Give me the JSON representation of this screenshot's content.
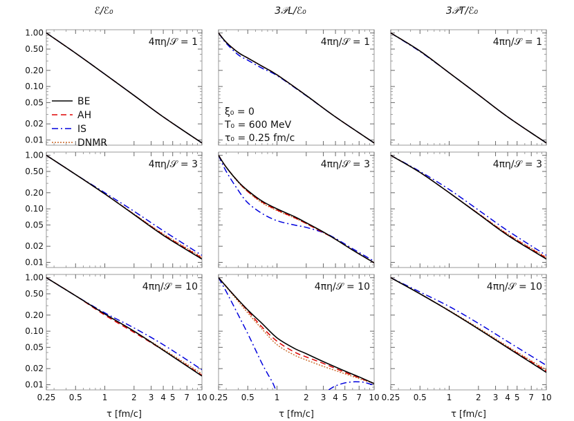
{
  "chart_data": {
    "type": "line",
    "layout": "3x3 grid of log-log panels",
    "column_titles": [
      "ℰ/ℰ₀",
      "3𝒫L/ℰ₀",
      "3𝒫T/ℰ₀"
    ],
    "row_labels": [
      "4πη/𝒮 = 1",
      "4πη/𝒮 = 3",
      "4πη/𝒮 = 10"
    ],
    "xlabel": "τ [fm/c]",
    "x_scale": "log",
    "y_scale": "log",
    "xlim": [
      0.25,
      10
    ],
    "ylim": [
      0.008,
      1.15
    ],
    "x_ticks": [
      0.25,
      0.5,
      1,
      2,
      3,
      4,
      5,
      7,
      10
    ],
    "x_tick_labels": [
      "0.25",
      "0.5",
      "1",
      "2",
      "3",
      "4",
      "5",
      "7",
      "10"
    ],
    "y_ticks": [
      1.0,
      0.5,
      0.2,
      0.1,
      0.05,
      0.02,
      0.01
    ],
    "y_tick_labels": [
      "1.00",
      "0.50",
      "0.20",
      "0.10",
      "0.05",
      "0.02",
      "0.01"
    ],
    "legend": [
      {
        "name": "BE",
        "color": "#000000",
        "dash": "solid"
      },
      {
        "name": "AH",
        "color": "#dd0000",
        "dash": "dashed"
      },
      {
        "name": "IS",
        "color": "#0000dd",
        "dash": "dashdot"
      },
      {
        "name": "DNMR",
        "color": "#c86420",
        "dash": "dotted"
      }
    ],
    "annotation_lines": [
      "ξ₀ = 0",
      "T₀ = 600 MeV",
      "τ₀ = 0.25 fm/c"
    ],
    "panels": [
      {
        "row": 0,
        "col": 0,
        "series": {
          "BE": {
            "x": [
              0.25,
              0.5,
              1,
              2,
              4,
              10
            ],
            "y": [
              1.0,
              0.42,
              0.17,
              0.068,
              0.027,
              0.0088
            ]
          },
          "AH": {
            "x": [
              0.25,
              0.5,
              1,
              2,
              4,
              10
            ],
            "y": [
              1.0,
              0.42,
              0.17,
              0.068,
              0.027,
              0.0088
            ]
          },
          "IS": {
            "x": [
              0.25,
              0.5,
              1,
              2,
              4,
              10
            ],
            "y": [
              1.0,
              0.42,
              0.17,
              0.068,
              0.027,
              0.0088
            ]
          },
          "DNMR": {
            "x": [
              0.25,
              0.5,
              1,
              2,
              4,
              10
            ],
            "y": [
              1.0,
              0.42,
              0.17,
              0.068,
              0.027,
              0.0088
            ]
          }
        }
      },
      {
        "row": 0,
        "col": 1,
        "series": {
          "BE": {
            "x": [
              0.25,
              0.3,
              0.4,
              0.5,
              0.7,
              1,
              2,
              4,
              10
            ],
            "y": [
              1.0,
              0.67,
              0.43,
              0.34,
              0.24,
              0.165,
              0.068,
              0.027,
              0.0088
            ]
          },
          "AH": {
            "x": [
              0.25,
              0.3,
              0.4,
              0.5,
              0.7,
              1,
              2,
              4,
              10
            ],
            "y": [
              1.0,
              0.67,
              0.43,
              0.34,
              0.24,
              0.165,
              0.068,
              0.027,
              0.0088
            ]
          },
          "IS": {
            "x": [
              0.25,
              0.3,
              0.4,
              0.5,
              0.7,
              1,
              2,
              4,
              10
            ],
            "y": [
              1.0,
              0.64,
              0.39,
              0.31,
              0.22,
              0.16,
              0.067,
              0.027,
              0.0088
            ]
          },
          "DNMR": {
            "x": [
              0.25,
              0.3,
              0.4,
              0.5,
              0.7,
              1,
              2,
              4,
              10
            ],
            "y": [
              1.0,
              0.67,
              0.43,
              0.34,
              0.24,
              0.165,
              0.068,
              0.027,
              0.0088
            ]
          }
        }
      },
      {
        "row": 0,
        "col": 2,
        "series": {
          "BE": {
            "x": [
              0.25,
              0.5,
              1,
              2,
              4,
              10
            ],
            "y": [
              1.0,
              0.46,
              0.18,
              0.07,
              0.027,
              0.0088
            ]
          },
          "AH": {
            "x": [
              0.25,
              0.5,
              1,
              2,
              4,
              10
            ],
            "y": [
              1.0,
              0.46,
              0.18,
              0.07,
              0.027,
              0.0088
            ]
          },
          "IS": {
            "x": [
              0.25,
              0.5,
              1,
              2,
              4,
              10
            ],
            "y": [
              1.0,
              0.45,
              0.18,
              0.07,
              0.027,
              0.0088
            ]
          },
          "DNMR": {
            "x": [
              0.25,
              0.5,
              1,
              2,
              4,
              10
            ],
            "y": [
              1.0,
              0.46,
              0.18,
              0.07,
              0.027,
              0.0088
            ]
          }
        }
      },
      {
        "row": 1,
        "col": 0,
        "series": {
          "BE": {
            "x": [
              0.25,
              0.5,
              1,
              2,
              4,
              10
            ],
            "y": [
              1.0,
              0.44,
              0.19,
              0.078,
              0.032,
              0.0115
            ]
          },
          "AH": {
            "x": [
              0.25,
              0.5,
              1,
              2,
              4,
              10
            ],
            "y": [
              1.0,
              0.44,
              0.19,
              0.079,
              0.033,
              0.012
            ]
          },
          "IS": {
            "x": [
              0.25,
              0.5,
              1,
              2,
              4,
              10
            ],
            "y": [
              1.0,
              0.44,
              0.2,
              0.09,
              0.039,
              0.0135
            ]
          },
          "DNMR": {
            "x": [
              0.25,
              0.5,
              1,
              2,
              4,
              10
            ],
            "y": [
              1.0,
              0.44,
              0.19,
              0.08,
              0.034,
              0.0125
            ]
          }
        }
      },
      {
        "row": 1,
        "col": 1,
        "series": {
          "BE": {
            "x": [
              0.25,
              0.3,
              0.4,
              0.5,
              0.7,
              1,
              1.5,
              2,
              3,
              4,
              6,
              10
            ],
            "y": [
              1.0,
              0.6,
              0.32,
              0.22,
              0.14,
              0.1,
              0.072,
              0.055,
              0.037,
              0.027,
              0.017,
              0.0098
            ]
          },
          "AH": {
            "x": [
              0.25,
              0.3,
              0.4,
              0.5,
              0.7,
              1,
              1.5,
              2,
              3,
              4,
              6,
              10
            ],
            "y": [
              1.0,
              0.6,
              0.32,
              0.21,
              0.135,
              0.095,
              0.069,
              0.053,
              0.036,
              0.027,
              0.017,
              0.0098
            ]
          },
          "IS": {
            "x": [
              0.25,
              0.3,
              0.4,
              0.5,
              0.7,
              1,
              1.5,
              2,
              3,
              4,
              6,
              10
            ],
            "y": [
              1.0,
              0.5,
              0.22,
              0.13,
              0.082,
              0.06,
              0.05,
              0.045,
              0.036,
              0.028,
              0.018,
              0.0105
            ]
          },
          "DNMR": {
            "x": [
              0.25,
              0.3,
              0.4,
              0.5,
              0.7,
              1,
              1.5,
              2,
              3,
              4,
              6,
              10
            ],
            "y": [
              1.0,
              0.6,
              0.31,
              0.21,
              0.13,
              0.093,
              0.068,
              0.053,
              0.036,
              0.027,
              0.017,
              0.0098
            ]
          }
        }
      },
      {
        "row": 1,
        "col": 2,
        "series": {
          "BE": {
            "x": [
              0.25,
              0.5,
              1,
              2,
              4,
              10
            ],
            "y": [
              1.0,
              0.48,
              0.2,
              0.08,
              0.032,
              0.0115
            ]
          },
          "AH": {
            "x": [
              0.25,
              0.5,
              1,
              2,
              4,
              10
            ],
            "y": [
              1.0,
              0.48,
              0.2,
              0.081,
              0.033,
              0.012
            ]
          },
          "IS": {
            "x": [
              0.25,
              0.5,
              1,
              2,
              4,
              10
            ],
            "y": [
              1.0,
              0.5,
              0.23,
              0.095,
              0.039,
              0.0135
            ]
          },
          "DNMR": {
            "x": [
              0.25,
              0.5,
              1,
              2,
              4,
              10
            ],
            "y": [
              1.0,
              0.48,
              0.2,
              0.082,
              0.034,
              0.0125
            ]
          }
        }
      },
      {
        "row": 2,
        "col": 0,
        "series": {
          "BE": {
            "x": [
              0.25,
              0.5,
              1,
              2,
              4,
              10
            ],
            "y": [
              1.0,
              0.46,
              0.21,
              0.1,
              0.044,
              0.0145
            ]
          },
          "AH": {
            "x": [
              0.25,
              0.5,
              1,
              2,
              4,
              10
            ],
            "y": [
              1.0,
              0.46,
              0.2,
              0.095,
              0.044,
              0.015
            ]
          },
          "IS": {
            "x": [
              0.25,
              0.5,
              1,
              2,
              4,
              10
            ],
            "y": [
              1.0,
              0.46,
              0.22,
              0.115,
              0.056,
              0.019
            ]
          },
          "DNMR": {
            "x": [
              0.25,
              0.5,
              1,
              2,
              4,
              10
            ],
            "y": [
              1.0,
              0.46,
              0.21,
              0.1,
              0.046,
              0.016
            ]
          }
        }
      },
      {
        "row": 2,
        "col": 1,
        "series": {
          "BE": {
            "x": [
              0.25,
              0.35,
              0.5,
              0.7,
              1,
              1.5,
              2,
              3,
              5,
              7,
              10
            ],
            "y": [
              1.0,
              0.5,
              0.25,
              0.14,
              0.075,
              0.048,
              0.038,
              0.027,
              0.018,
              0.014,
              0.0105
            ]
          },
          "AH": {
            "x": [
              0.25,
              0.35,
              0.5,
              0.7,
              1,
              1.5,
              2,
              3,
              5,
              7,
              10
            ],
            "y": [
              1.0,
              0.5,
              0.24,
              0.12,
              0.065,
              0.041,
              0.033,
              0.025,
              0.017,
              0.0135,
              0.0105
            ]
          },
          "IS": {
            "x": [
              0.25,
              0.3,
              0.4,
              0.5,
              0.6,
              0.7,
              0.8,
              0.9,
              0.97
            ],
            "y": [
              1.0,
              0.55,
              0.2,
              0.09,
              0.045,
              0.025,
              0.016,
              0.011,
              0.008
            ]
          },
          "IS_tail": {
            "x": [
              3.4,
              4,
              5,
              6,
              7,
              8,
              10
            ],
            "y": [
              0.008,
              0.0095,
              0.0108,
              0.0113,
              0.0113,
              0.011,
              0.0098
            ]
          },
          "DNMR": {
            "x": [
              0.25,
              0.35,
              0.5,
              0.7,
              1,
              1.5,
              2,
              3,
              5,
              7,
              10
            ],
            "y": [
              1.0,
              0.48,
              0.22,
              0.11,
              0.056,
              0.036,
              0.029,
              0.022,
              0.016,
              0.013,
              0.0105
            ]
          }
        }
      },
      {
        "row": 2,
        "col": 2,
        "series": {
          "BE": {
            "x": [
              0.25,
              0.5,
              1,
              2,
              4,
              10
            ],
            "y": [
              1.0,
              0.5,
              0.24,
              0.11,
              0.049,
              0.017
            ]
          },
          "AH": {
            "x": [
              0.25,
              0.5,
              1,
              2,
              4,
              10
            ],
            "y": [
              1.0,
              0.5,
              0.24,
              0.11,
              0.05,
              0.018
            ]
          },
          "IS": {
            "x": [
              0.25,
              0.5,
              1,
              2,
              4,
              10
            ],
            "y": [
              1.0,
              0.54,
              0.29,
              0.14,
              0.064,
              0.023
            ]
          },
          "DNMR": {
            "x": [
              0.25,
              0.5,
              1,
              2,
              4,
              10
            ],
            "y": [
              1.0,
              0.5,
              0.245,
              0.115,
              0.052,
              0.019
            ]
          }
        }
      }
    ]
  }
}
